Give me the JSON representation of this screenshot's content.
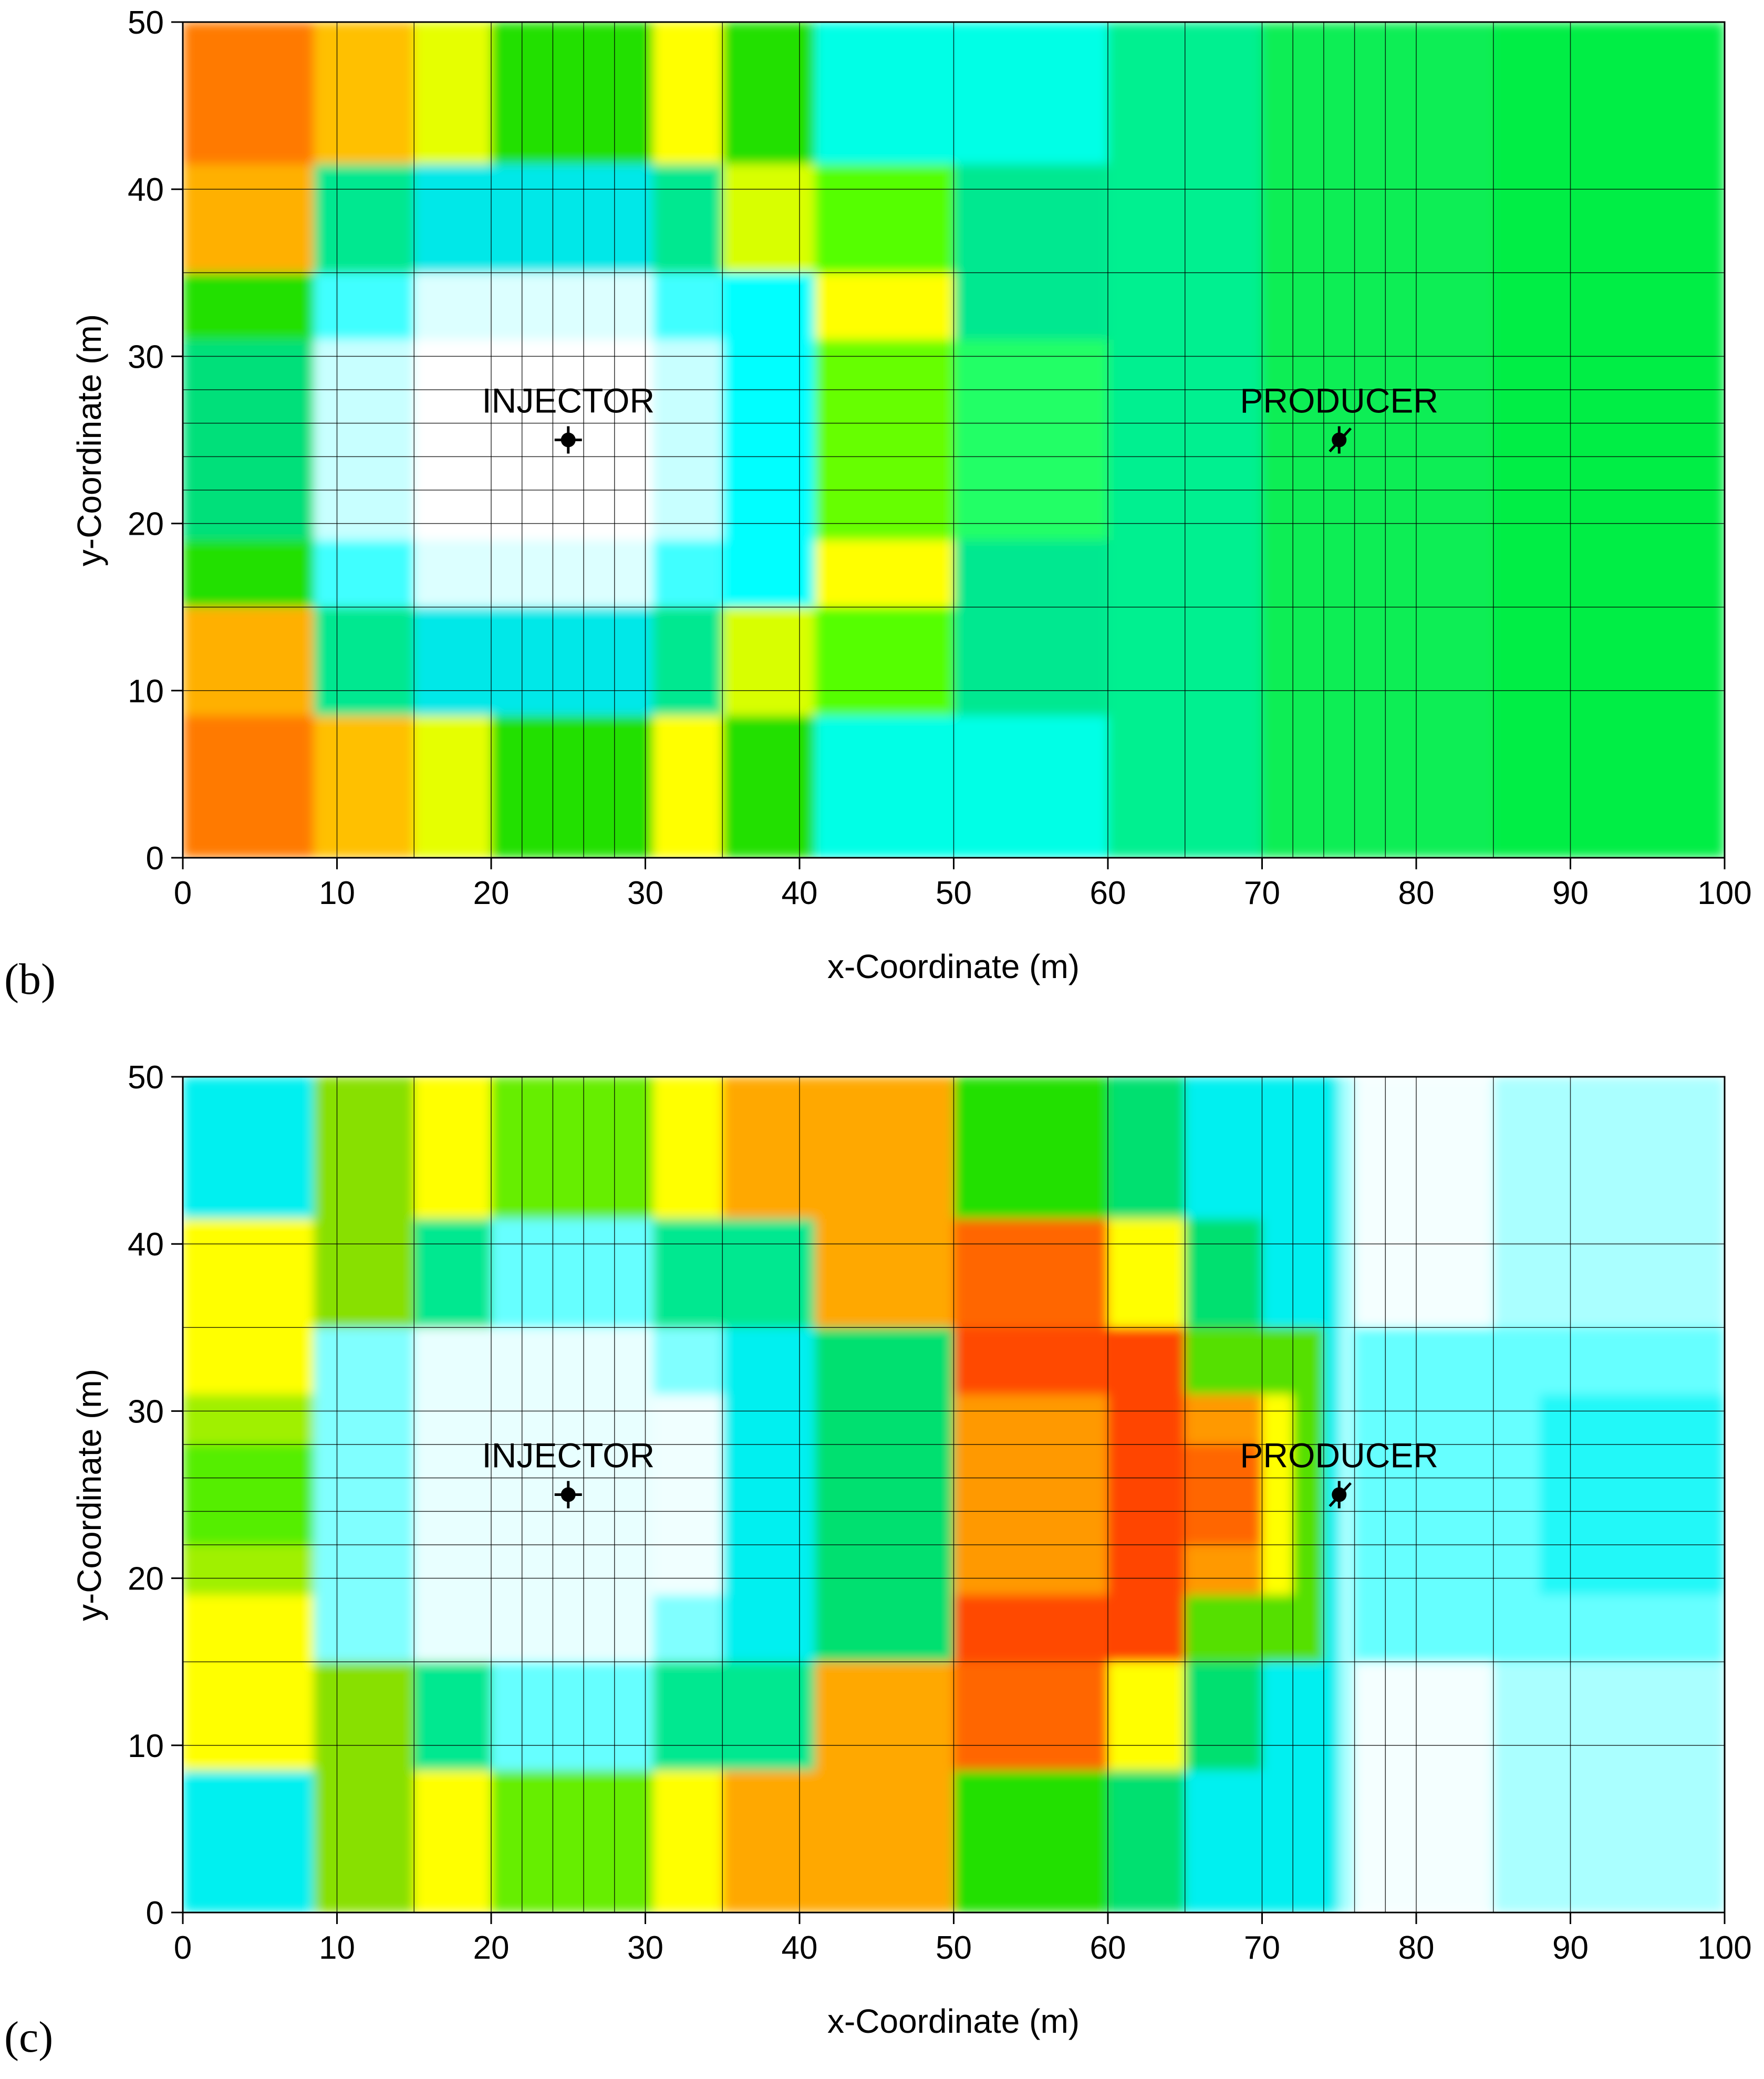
{
  "chart_data": [
    {
      "type": "heatmap",
      "panel_label": "(b)",
      "xlabel": "x-Coordinate (m)",
      "ylabel": "y-Coordinate (m)",
      "xlim": [
        0,
        100
      ],
      "ylim": [
        0,
        50
      ],
      "xticks": [
        "0",
        "10",
        "20",
        "30",
        "40",
        "50",
        "60",
        "70",
        "80",
        "90",
        "100"
      ],
      "yticks": [
        "0",
        "10",
        "20",
        "30",
        "40",
        "50"
      ],
      "x_edges": [
        0,
        10,
        15,
        20,
        22,
        24,
        26,
        28,
        30,
        35,
        40,
        50,
        60,
        65,
        70,
        72,
        74,
        76,
        78,
        80,
        85,
        90,
        100
      ],
      "y_edges": [
        0,
        10,
        15,
        20,
        22,
        24,
        26,
        28,
        30,
        35,
        40,
        50
      ],
      "wells": [
        {
          "name": "INJECTOR",
          "x": 25,
          "y": 25
        },
        {
          "name": "PRODUCER",
          "x": 75,
          "y": 25
        }
      ],
      "regions": [
        {
          "x": [
            0,
            8.5
          ],
          "y": [
            41.5,
            50
          ],
          "color": "#ff7a00"
        },
        {
          "x": [
            0,
            8.5
          ],
          "y": [
            35,
            41.5
          ],
          "color": "#ffb000"
        },
        {
          "x": [
            0,
            8.5
          ],
          "y": [
            31,
            35
          ],
          "color": "#22e000"
        },
        {
          "x": [
            0,
            8.5
          ],
          "y": [
            19,
            31
          ],
          "color": "#00e07a"
        },
        {
          "x": [
            0,
            8.5
          ],
          "y": [
            15,
            19
          ],
          "color": "#22e000"
        },
        {
          "x": [
            0,
            8.5
          ],
          "y": [
            8.5,
            15
          ],
          "color": "#ffb000"
        },
        {
          "x": [
            0,
            8.5
          ],
          "y": [
            0,
            8.5
          ],
          "color": "#ff7a00"
        },
        {
          "x": [
            8.5,
            15
          ],
          "y": [
            41.5,
            50
          ],
          "color": "#ffc000"
        },
        {
          "x": [
            8.5,
            15
          ],
          "y": [
            0,
            8.5
          ],
          "color": "#ffc000"
        },
        {
          "x": [
            15,
            20
          ],
          "y": [
            41.5,
            50
          ],
          "color": "#e6ff00"
        },
        {
          "x": [
            15,
            20
          ],
          "y": [
            0,
            8.5
          ],
          "color": "#e6ff00"
        },
        {
          "x": [
            20,
            30.5
          ],
          "y": [
            41.5,
            50
          ],
          "color": "#22e000"
        },
        {
          "x": [
            20,
            30.5
          ],
          "y": [
            0,
            8.5
          ],
          "color": "#22e000"
        },
        {
          "x": [
            30.5,
            35
          ],
          "y": [
            41.5,
            50
          ],
          "color": "#ffff00"
        },
        {
          "x": [
            30.5,
            35
          ],
          "y": [
            0,
            8.5
          ],
          "color": "#ffff00"
        },
        {
          "x": [
            35,
            41
          ],
          "y": [
            41.5,
            50
          ],
          "color": "#22e000"
        },
        {
          "x": [
            35,
            41
          ],
          "y": [
            0,
            8.5
          ],
          "color": "#22e000"
        },
        {
          "x": [
            41,
            60
          ],
          "y": [
            41.5,
            50
          ],
          "color": "#00ffe6"
        },
        {
          "x": [
            41,
            60
          ],
          "y": [
            0,
            8.5
          ],
          "color": "#00ffe6"
        },
        {
          "x": [
            8.5,
            41
          ],
          "y": [
            8.5,
            41.5
          ],
          "color": "#00e890"
        },
        {
          "x": [
            15,
            30.5
          ],
          "y": [
            8.5,
            41.5
          ],
          "color": "#00e8e8"
        },
        {
          "x": [
            8.5,
            35
          ],
          "y": [
            15,
            35
          ],
          "color": "#40ffff"
        },
        {
          "x": [
            8.5,
            35
          ],
          "y": [
            19,
            31
          ],
          "color": "#c8ffff"
        },
        {
          "x": [
            15,
            30.5
          ],
          "y": [
            15,
            35
          ],
          "color": "#dcffff"
        },
        {
          "x": [
            15,
            30.5
          ],
          "y": [
            19,
            31
          ],
          "color": "#ffffff"
        },
        {
          "x": [
            35,
            41
          ],
          "y": [
            35,
            41.5
          ],
          "color": "#d8ff00"
        },
        {
          "x": [
            35,
            41
          ],
          "y": [
            8.5,
            15
          ],
          "color": "#d8ff00"
        },
        {
          "x": [
            35,
            41
          ],
          "y": [
            15,
            35
          ],
          "color": "#00ffff"
        },
        {
          "x": [
            41,
            50
          ],
          "y": [
            35,
            41.5
          ],
          "color": "#55ff00"
        },
        {
          "x": [
            41,
            50
          ],
          "y": [
            8.5,
            15
          ],
          "color": "#55ff00"
        },
        {
          "x": [
            41,
            50
          ],
          "y": [
            31,
            35
          ],
          "color": "#ffff00"
        },
        {
          "x": [
            41,
            50
          ],
          "y": [
            15,
            19
          ],
          "color": "#ffff00"
        },
        {
          "x": [
            41,
            50
          ],
          "y": [
            19,
            31
          ],
          "color": "#66ff00"
        },
        {
          "x": [
            50,
            60
          ],
          "y": [
            8.5,
            41.5
          ],
          "color": "#00e890"
        },
        {
          "x": [
            50,
            60
          ],
          "y": [
            19,
            31
          ],
          "color": "#22ff66"
        },
        {
          "x": [
            60,
            70
          ],
          "y": [
            0,
            50
          ],
          "color": "#00f090"
        },
        {
          "x": [
            70,
            100
          ],
          "y": [
            0,
            50
          ],
          "color": "#11ee55"
        },
        {
          "x": [
            85,
            100
          ],
          "y": [
            0,
            50
          ],
          "color": "#00ee44"
        }
      ]
    },
    {
      "type": "heatmap",
      "panel_label": "(c)",
      "xlabel": "x-Coordinate (m)",
      "ylabel": "y-Coordinate (m)",
      "xlim": [
        0,
        100
      ],
      "ylim": [
        0,
        50
      ],
      "xticks": [
        "0",
        "10",
        "20",
        "30",
        "40",
        "50",
        "60",
        "70",
        "80",
        "90",
        "100"
      ],
      "yticks": [
        "0",
        "10",
        "20",
        "30",
        "40",
        "50"
      ],
      "x_edges": [
        0,
        10,
        15,
        20,
        22,
        24,
        26,
        28,
        30,
        35,
        40,
        50,
        60,
        65,
        70,
        72,
        74,
        76,
        78,
        80,
        85,
        90,
        100
      ],
      "y_edges": [
        0,
        10,
        15,
        20,
        22,
        24,
        26,
        28,
        30,
        35,
        40,
        50
      ],
      "wells": [
        {
          "name": "INJECTOR",
          "x": 25,
          "y": 25
        },
        {
          "name": "PRODUCER",
          "x": 75,
          "y": 25
        }
      ],
      "regions": [
        {
          "x": [
            0,
            8.5
          ],
          "y": [
            41.5,
            50
          ],
          "color": "#00f0f0"
        },
        {
          "x": [
            0,
            8.5
          ],
          "y": [
            0,
            8.5
          ],
          "color": "#00f0f0"
        },
        {
          "x": [
            0,
            8.5
          ],
          "y": [
            8.5,
            41.5
          ],
          "color": "#ffff00"
        },
        {
          "x": [
            0,
            8.5
          ],
          "y": [
            19,
            31
          ],
          "color": "#a0f000"
        },
        {
          "x": [
            0,
            8.5
          ],
          "y": [
            22,
            28
          ],
          "color": "#55ee00"
        },
        {
          "x": [
            8.5,
            15
          ],
          "y": [
            0,
            50
          ],
          "color": "#88e000"
        },
        {
          "x": [
            15,
            20
          ],
          "y": [
            41.5,
            50
          ],
          "color": "#ffff00"
        },
        {
          "x": [
            15,
            20
          ],
          "y": [
            0,
            8.5
          ],
          "color": "#ffff00"
        },
        {
          "x": [
            20,
            30.5
          ],
          "y": [
            41.5,
            50
          ],
          "color": "#66ee00"
        },
        {
          "x": [
            20,
            30.5
          ],
          "y": [
            0,
            8.5
          ],
          "color": "#66ee00"
        },
        {
          "x": [
            30.5,
            35
          ],
          "y": [
            41.5,
            50
          ],
          "color": "#ffff00"
        },
        {
          "x": [
            30.5,
            35
          ],
          "y": [
            0,
            8.5
          ],
          "color": "#ffff00"
        },
        {
          "x": [
            35,
            50
          ],
          "y": [
            0,
            50
          ],
          "color": "#ffa800"
        },
        {
          "x": [
            15,
            41
          ],
          "y": [
            8.5,
            41.5
          ],
          "color": "#00e890"
        },
        {
          "x": [
            20,
            30.5
          ],
          "y": [
            8.5,
            41.5
          ],
          "color": "#66ffff"
        },
        {
          "x": [
            8.5,
            41
          ],
          "y": [
            15,
            35
          ],
          "color": "#00f0f0"
        },
        {
          "x": [
            8.5,
            35
          ],
          "y": [
            15,
            35
          ],
          "color": "#80ffff"
        },
        {
          "x": [
            15,
            35
          ],
          "y": [
            19,
            31
          ],
          "color": "#f0ffff"
        },
        {
          "x": [
            15,
            30.5
          ],
          "y": [
            15,
            35
          ],
          "color": "#e8ffff"
        },
        {
          "x": [
            41,
            50
          ],
          "y": [
            15,
            35
          ],
          "color": "#00e070"
        },
        {
          "x": [
            50,
            60
          ],
          "y": [
            41.5,
            50
          ],
          "color": "#22e000"
        },
        {
          "x": [
            50,
            60
          ],
          "y": [
            0,
            8.5
          ],
          "color": "#22e000"
        },
        {
          "x": [
            50,
            60
          ],
          "y": [
            8.5,
            41.5
          ],
          "color": "#ff6600"
        },
        {
          "x": [
            50,
            60
          ],
          "y": [
            19,
            31
          ],
          "color": "#ff9900"
        },
        {
          "x": [
            50,
            60
          ],
          "y": [
            31,
            35
          ],
          "color": "#ff4800"
        },
        {
          "x": [
            50,
            60
          ],
          "y": [
            15,
            19
          ],
          "color": "#ff4800"
        },
        {
          "x": [
            60,
            65
          ],
          "y": [
            41.5,
            50
          ],
          "color": "#00e070"
        },
        {
          "x": [
            60,
            65
          ],
          "y": [
            0,
            8.5
          ],
          "color": "#00e070"
        },
        {
          "x": [
            60,
            65
          ],
          "y": [
            35,
            41.5
          ],
          "color": "#ffff00"
        },
        {
          "x": [
            60,
            65
          ],
          "y": [
            8.5,
            15
          ],
          "color": "#ffff00"
        },
        {
          "x": [
            60,
            65
          ],
          "y": [
            15,
            35
          ],
          "color": "#ff4400"
        },
        {
          "x": [
            65,
            75
          ],
          "y": [
            0,
            50
          ],
          "color": "#00f0f0"
        },
        {
          "x": [
            65,
            70
          ],
          "y": [
            8.5,
            41.5
          ],
          "color": "#00e070"
        },
        {
          "x": [
            65,
            74
          ],
          "y": [
            15,
            35
          ],
          "color": "#55e000"
        },
        {
          "x": [
            65,
            72
          ],
          "y": [
            19,
            31
          ],
          "color": "#ffff00"
        },
        {
          "x": [
            65,
            70
          ],
          "y": [
            19,
            31
          ],
          "color": "#ff9900"
        },
        {
          "x": [
            65,
            70
          ],
          "y": [
            22,
            28
          ],
          "color": "#ff6600"
        },
        {
          "x": [
            75,
            100
          ],
          "y": [
            0,
            50
          ],
          "color": "#aaffff"
        },
        {
          "x": [
            76,
            85
          ],
          "y": [
            0,
            50
          ],
          "color": "#f4ffff"
        },
        {
          "x": [
            76,
            100
          ],
          "y": [
            15,
            35
          ],
          "color": "#66ffff"
        },
        {
          "x": [
            88,
            100
          ],
          "y": [
            19,
            31
          ],
          "color": "#22f8f8"
        }
      ]
    }
  ]
}
